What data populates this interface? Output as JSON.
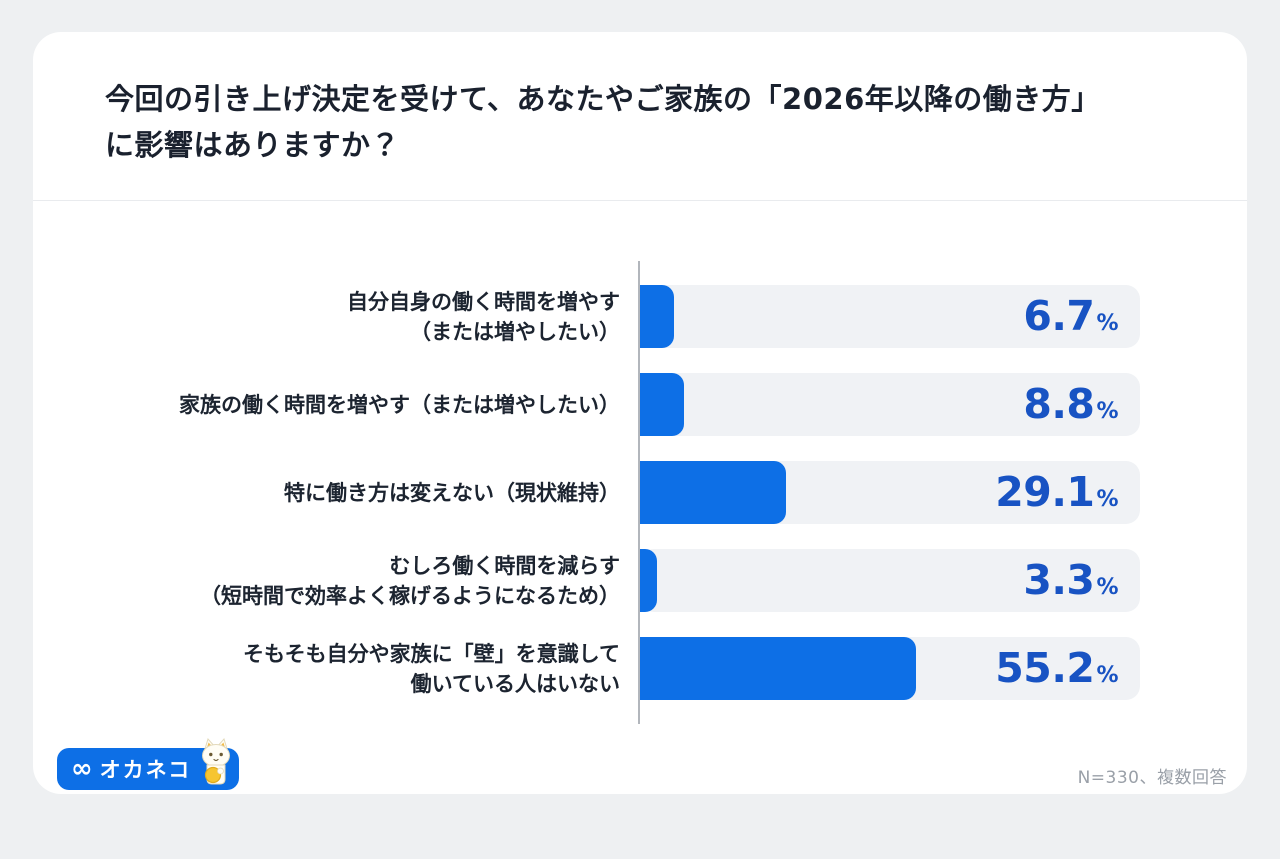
{
  "header": {
    "title_line1": "今回の引き上げ決定を受けて、あなたやご家族の「2026年以降の働き方」",
    "title_line2": "に影響はありますか？"
  },
  "chart_data": {
    "type": "bar",
    "orientation": "horizontal",
    "title": "今回の引き上げ決定を受けて、あなたやご家族の「2026年以降の働き方」に影響はありますか？",
    "unit": "%",
    "xlim": [
      0,
      100
    ],
    "grid": false,
    "legend": false,
    "categories": [
      "自分自身の働く時間を増やす（または増やしたい）",
      "家族の働く時間を増やす（または増やしたい）",
      "特に働き方は変えない（現状維持）",
      "むしろ働く時間を減らす（短時間で効率よく稼げるようになるため）",
      "そもそも自分や家族に「壁」を意識して働いている人はいない"
    ],
    "values": [
      6.7,
      8.8,
      29.1,
      3.3,
      55.2
    ],
    "rows": [
      {
        "label": "自分自身の働く時間を増やす\n（または増やしたい）",
        "value": 6.7
      },
      {
        "label": "家族の働く時間を増やす（または増やしたい）",
        "value": 8.8
      },
      {
        "label": "特に働き方は変えない（現状維持）",
        "value": 29.1
      },
      {
        "label": "むしろ働く時間を減らす\n（短時間で効率よく稼げるようになるため）",
        "value": 3.3
      },
      {
        "label": "そもそも自分や家族に「壁」を意識して\n働いている人はいない",
        "value": 55.2
      }
    ],
    "colors": {
      "bar": "#0d6fe6",
      "value_text": "#1853c3",
      "track": "#f0f2f5",
      "axis": "#b2b6bc"
    }
  },
  "footer": {
    "logo_icon": "∞",
    "logo_text": "オカネコ",
    "note": "N=330、複数回答"
  }
}
